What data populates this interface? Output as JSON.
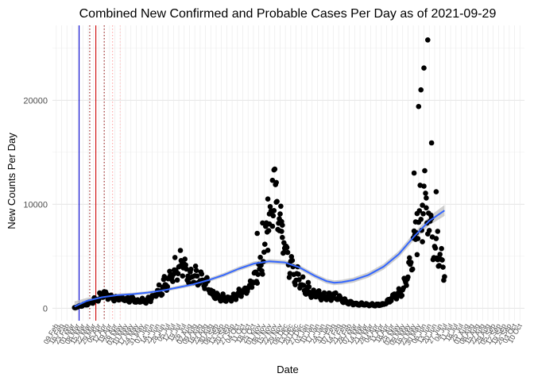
{
  "chart_data": {
    "type": "scatter",
    "title": "Combined New Confirmed and Probable Cases Per Day as of 2021-09-29",
    "xlabel": "Date",
    "ylabel": "New Counts Per Day",
    "ylim": [
      -1200,
      27200
    ],
    "xlim": [
      -5,
      615
    ],
    "y_ticks": [
      0,
      10000,
      20000
    ],
    "y_tick_labels": [
      "0",
      "10000",
      "20000"
    ],
    "x_axis_note": "x values are days since 2020-02-09",
    "x_ticks": [
      {
        "day": 0,
        "label": "09 Feb"
      },
      {
        "day": 7,
        "label": "16 Feb"
      },
      {
        "day": 14,
        "label": "23 Feb"
      },
      {
        "day": 21,
        "label": "01 Mar"
      },
      {
        "day": 28,
        "label": "08 Mar"
      },
      {
        "day": 35,
        "label": "15 Mar"
      },
      {
        "day": 42,
        "label": "22 Mar"
      },
      {
        "day": 49,
        "label": "29 Mar"
      },
      {
        "day": 56,
        "label": "05 Apr"
      },
      {
        "day": 63,
        "label": "12 Apr"
      },
      {
        "day": 70,
        "label": "19 Apr"
      },
      {
        "day": 77,
        "label": "26 Apr"
      },
      {
        "day": 84,
        "label": "03 May"
      },
      {
        "day": 91,
        "label": "10 May"
      },
      {
        "day": 98,
        "label": "17 May"
      },
      {
        "day": 105,
        "label": "24 May"
      },
      {
        "day": 112,
        "label": "31 May"
      },
      {
        "day": 119,
        "label": "07 Jun"
      },
      {
        "day": 126,
        "label": "14 Jun"
      },
      {
        "day": 133,
        "label": "21 Jun"
      },
      {
        "day": 140,
        "label": "28 Jun"
      },
      {
        "day": 147,
        "label": "05 Jul"
      },
      {
        "day": 154,
        "label": "12 Jul"
      },
      {
        "day": 161,
        "label": "19 Jul"
      },
      {
        "day": 168,
        "label": "26 Jul"
      },
      {
        "day": 175,
        "label": "02 Aug"
      },
      {
        "day": 182,
        "label": "09 Aug"
      },
      {
        "day": 189,
        "label": "16 Aug"
      },
      {
        "day": 196,
        "label": "23 Aug"
      },
      {
        "day": 203,
        "label": "30 Aug"
      },
      {
        "day": 210,
        "label": "06 Sep"
      },
      {
        "day": 217,
        "label": "13 Sep"
      },
      {
        "day": 224,
        "label": "20 Sep"
      },
      {
        "day": 231,
        "label": "27 Sep"
      },
      {
        "day": 238,
        "label": "04 Oct"
      },
      {
        "day": 245,
        "label": "11 Oct"
      },
      {
        "day": 252,
        "label": "18 Oct"
      },
      {
        "day": 259,
        "label": "25 Oct"
      },
      {
        "day": 266,
        "label": "01 Nov"
      },
      {
        "day": 273,
        "label": "08 Nov"
      },
      {
        "day": 280,
        "label": "15 Nov"
      },
      {
        "day": 287,
        "label": "22 Nov"
      },
      {
        "day": 294,
        "label": "29 Nov"
      },
      {
        "day": 301,
        "label": "06 Dec"
      },
      {
        "day": 308,
        "label": "13 Dec"
      },
      {
        "day": 315,
        "label": "20 Dec"
      },
      {
        "day": 322,
        "label": "27 Dec"
      },
      {
        "day": 329,
        "label": "03 Jan"
      },
      {
        "day": 336,
        "label": "10 Jan"
      },
      {
        "day": 343,
        "label": "17 Jan"
      },
      {
        "day": 350,
        "label": "24 Jan"
      },
      {
        "day": 357,
        "label": "31 Jan"
      },
      {
        "day": 364,
        "label": "07 Feb"
      },
      {
        "day": 371,
        "label": "14 Feb"
      },
      {
        "day": 378,
        "label": "21 Feb"
      },
      {
        "day": 385,
        "label": "28 Feb"
      },
      {
        "day": 392,
        "label": "07 Mar"
      },
      {
        "day": 399,
        "label": "14 Mar"
      },
      {
        "day": 406,
        "label": "21 Mar"
      },
      {
        "day": 413,
        "label": "28 Mar"
      },
      {
        "day": 420,
        "label": "04 Apr"
      },
      {
        "day": 427,
        "label": "11 Apr"
      },
      {
        "day": 434,
        "label": "18 Apr"
      },
      {
        "day": 441,
        "label": "25 Apr"
      },
      {
        "day": 448,
        "label": "02 May"
      },
      {
        "day": 455,
        "label": "09 May"
      },
      {
        "day": 462,
        "label": "16 May"
      },
      {
        "day": 469,
        "label": "23 May"
      },
      {
        "day": 476,
        "label": "30 May"
      },
      {
        "day": 483,
        "label": "06 Jun"
      },
      {
        "day": 490,
        "label": "13 Jun"
      },
      {
        "day": 497,
        "label": "20 Jun"
      },
      {
        "day": 504,
        "label": "27 Jun"
      },
      {
        "day": 511,
        "label": "04 Jul"
      },
      {
        "day": 518,
        "label": "11 Jul"
      },
      {
        "day": 525,
        "label": "18 Jul"
      },
      {
        "day": 532,
        "label": "25 Jul"
      },
      {
        "day": 539,
        "label": "01 Aug"
      },
      {
        "day": 546,
        "label": "08 Aug"
      },
      {
        "day": 553,
        "label": "15 Aug"
      },
      {
        "day": 560,
        "label": "22 Aug"
      },
      {
        "day": 567,
        "label": "29 Aug"
      },
      {
        "day": 574,
        "label": "05 Sep"
      },
      {
        "day": 581,
        "label": "12 Sep"
      },
      {
        "day": 588,
        "label": "19 Sep"
      },
      {
        "day": 595,
        "label": "26 Sep"
      },
      {
        "day": 602,
        "label": "03 Oct"
      },
      {
        "day": 609,
        "label": "10 Oct"
      }
    ],
    "vertical_lines": [
      {
        "day": 30,
        "color": "#0000cc",
        "style": "solid"
      },
      {
        "day": 44,
        "color": "#8b0000",
        "style": "dotted"
      },
      {
        "day": 52,
        "color": "#cc0000",
        "style": "solid"
      },
      {
        "day": 63,
        "color": "#8b0000",
        "style": "dotted"
      },
      {
        "day": 74,
        "color": "#ff9999",
        "style": "dotted"
      },
      {
        "day": 84,
        "color": "#ffbbbb",
        "style": "dotted"
      }
    ],
    "series": [
      {
        "name": "cases",
        "color": "#000000",
        "anchors": [
          [
            24,
            50
          ],
          [
            40,
            400
          ],
          [
            55,
            900
          ],
          [
            62,
            1500
          ],
          [
            72,
            1000
          ],
          [
            90,
            900
          ],
          [
            105,
            700
          ],
          [
            120,
            700
          ],
          [
            130,
            1300
          ],
          [
            140,
            2000
          ],
          [
            155,
            3800
          ],
          [
            165,
            4300
          ],
          [
            172,
            3500
          ],
          [
            180,
            3200
          ],
          [
            190,
            2600
          ],
          [
            198,
            2200
          ],
          [
            205,
            1300
          ],
          [
            215,
            1000
          ],
          [
            225,
            900
          ],
          [
            235,
            1100
          ],
          [
            245,
            1600
          ],
          [
            255,
            2200
          ],
          [
            262,
            3300
          ],
          [
            270,
            4200
          ],
          [
            275,
            6200
          ],
          [
            282,
            9000
          ],
          [
            287,
            11500
          ],
          [
            291,
            9500
          ],
          [
            295,
            7800
          ],
          [
            300,
            6000
          ],
          [
            305,
            4500
          ],
          [
            313,
            3300
          ],
          [
            322,
            2300
          ],
          [
            335,
            1500
          ],
          [
            350,
            1200
          ],
          [
            362,
            1000
          ],
          [
            368,
            1200
          ],
          [
            375,
            800
          ],
          [
            388,
            500
          ],
          [
            405,
            350
          ],
          [
            420,
            300
          ],
          [
            430,
            400
          ],
          [
            440,
            900
          ],
          [
            447,
            1200
          ],
          [
            455,
            1600
          ],
          [
            462,
            3500
          ],
          [
            468,
            5500
          ],
          [
            475,
            7500
          ],
          [
            480,
            9500
          ],
          [
            485,
            11000
          ],
          [
            490,
            9000
          ],
          [
            497,
            6000
          ],
          [
            502,
            4800
          ],
          [
            507,
            4000
          ],
          [
            510,
            4200
          ]
        ],
        "outliers": [
          [
            264,
            7200
          ],
          [
            271,
            8200
          ],
          [
            278,
            10500
          ],
          [
            280,
            8100
          ],
          [
            284,
            12300
          ],
          [
            286,
            13300
          ],
          [
            289,
            10200
          ],
          [
            293,
            8600
          ],
          [
            296,
            7400
          ],
          [
            297,
            6800
          ],
          [
            299,
            6300
          ],
          [
            470,
            13000
          ],
          [
            476,
            19400
          ],
          [
            479,
            21000
          ],
          [
            483,
            23100
          ],
          [
            488,
            25800
          ],
          [
            493,
            15900
          ],
          [
            499,
            11200
          ],
          [
            486,
            10600
          ],
          [
            481,
            9900
          ],
          [
            474,
            9100
          ],
          [
            472,
            8300
          ],
          [
            501,
            7400
          ]
        ]
      },
      {
        "name": "smooth",
        "color": "#3366ff",
        "band_color": "#bdbdbd",
        "points": [
          [
            24,
            160
          ],
          [
            40,
            700
          ],
          [
            60,
            1050
          ],
          [
            80,
            1250
          ],
          [
            100,
            1350
          ],
          [
            120,
            1500
          ],
          [
            140,
            1700
          ],
          [
            160,
            2000
          ],
          [
            180,
            2300
          ],
          [
            200,
            2700
          ],
          [
            220,
            3200
          ],
          [
            240,
            3800
          ],
          [
            260,
            4300
          ],
          [
            280,
            4500
          ],
          [
            300,
            4400
          ],
          [
            320,
            3900
          ],
          [
            340,
            3100
          ],
          [
            355,
            2600
          ],
          [
            365,
            2450
          ],
          [
            375,
            2500
          ],
          [
            390,
            2700
          ],
          [
            410,
            3200
          ],
          [
            430,
            4000
          ],
          [
            450,
            5200
          ],
          [
            470,
            6900
          ],
          [
            490,
            8400
          ],
          [
            510,
            9400
          ]
        ],
        "band_halfwidth": [
          500,
          280,
          180,
          150,
          140,
          140,
          150,
          160,
          170,
          180,
          190,
          200,
          210,
          220,
          220,
          220,
          220,
          230,
          230,
          230,
          240,
          260,
          280,
          310,
          360,
          420,
          520
        ]
      }
    ]
  }
}
